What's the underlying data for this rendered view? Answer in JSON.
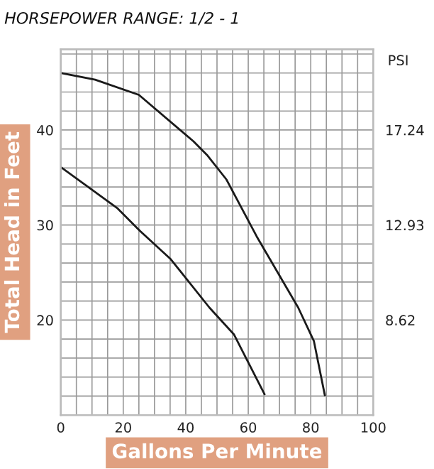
{
  "chart_data": {
    "type": "line",
    "title": "HORSEPOWER RANGE: 1/2 - 1",
    "xlabel": "Gallons Per Minute",
    "ylabel": "Total Head in Feet",
    "y2label": "PSI",
    "series": [
      {
        "color": "#1a1a1a",
        "x": [
          0,
          11,
          25,
          42.5,
          47,
          53,
          62.7,
          76,
          81,
          84.5
        ],
        "values": [
          46.0,
          45.3,
          43.7,
          38.8,
          37.3,
          34.8,
          28.8,
          21.3,
          17.8,
          12.1
        ]
      },
      {
        "color": "#1a1a1a",
        "x": [
          0,
          18,
          25.3,
          35.2,
          47.6,
          55.4,
          65.2
        ],
        "values": [
          36.1,
          31.8,
          29.4,
          26.4,
          21.3,
          18.5,
          12.2
        ]
      }
    ],
    "xlim": [
      0,
      100
    ],
    "ylim": [
      10,
      48.5
    ],
    "y2lim": [
      4.31,
      20.9
    ],
    "xticks": [
      0,
      {
        "value": 5,
        "label": null
      },
      {
        "value": 10,
        "label": null
      },
      {
        "value": 15,
        "label": null
      },
      20,
      {
        "value": 25,
        "label": null
      },
      {
        "value": 30,
        "label": null
      },
      {
        "value": 35,
        "label": null
      },
      40,
      {
        "value": 45,
        "label": null
      },
      {
        "value": 50,
        "label": null
      },
      {
        "value": 55,
        "label": null
      },
      60,
      {
        "value": 65,
        "label": null
      },
      {
        "value": 70,
        "label": null
      },
      {
        "value": 75,
        "label": null
      },
      80,
      {
        "value": 85,
        "label": null
      },
      {
        "value": 90,
        "label": null
      },
      {
        "value": 95,
        "label": null
      },
      100
    ],
    "yticks": [
      {
        "value": 12,
        "label": null
      },
      {
        "value": 14,
        "label": null
      },
      {
        "value": 16,
        "label": null
      },
      {
        "value": 18,
        "label": null
      },
      20,
      {
        "value": 22,
        "label": null
      },
      {
        "value": 24,
        "label": null
      },
      {
        "value": 26,
        "label": null
      },
      {
        "value": 28,
        "label": null
      },
      30,
      {
        "value": 32,
        "label": null
      },
      {
        "value": 34,
        "label": null
      },
      {
        "value": 36,
        "label": null
      },
      {
        "value": 38,
        "label": null
      },
      40,
      {
        "value": 42,
        "label": null
      },
      {
        "value": 44,
        "label": null
      },
      {
        "value": 46,
        "label": null
      },
      {
        "value": 48,
        "label": null
      }
    ],
    "y2ticks": [
      8.62,
      12.93,
      17.24
    ],
    "grid": true,
    "legend": false,
    "marker": "none",
    "line_style": "solid"
  }
}
